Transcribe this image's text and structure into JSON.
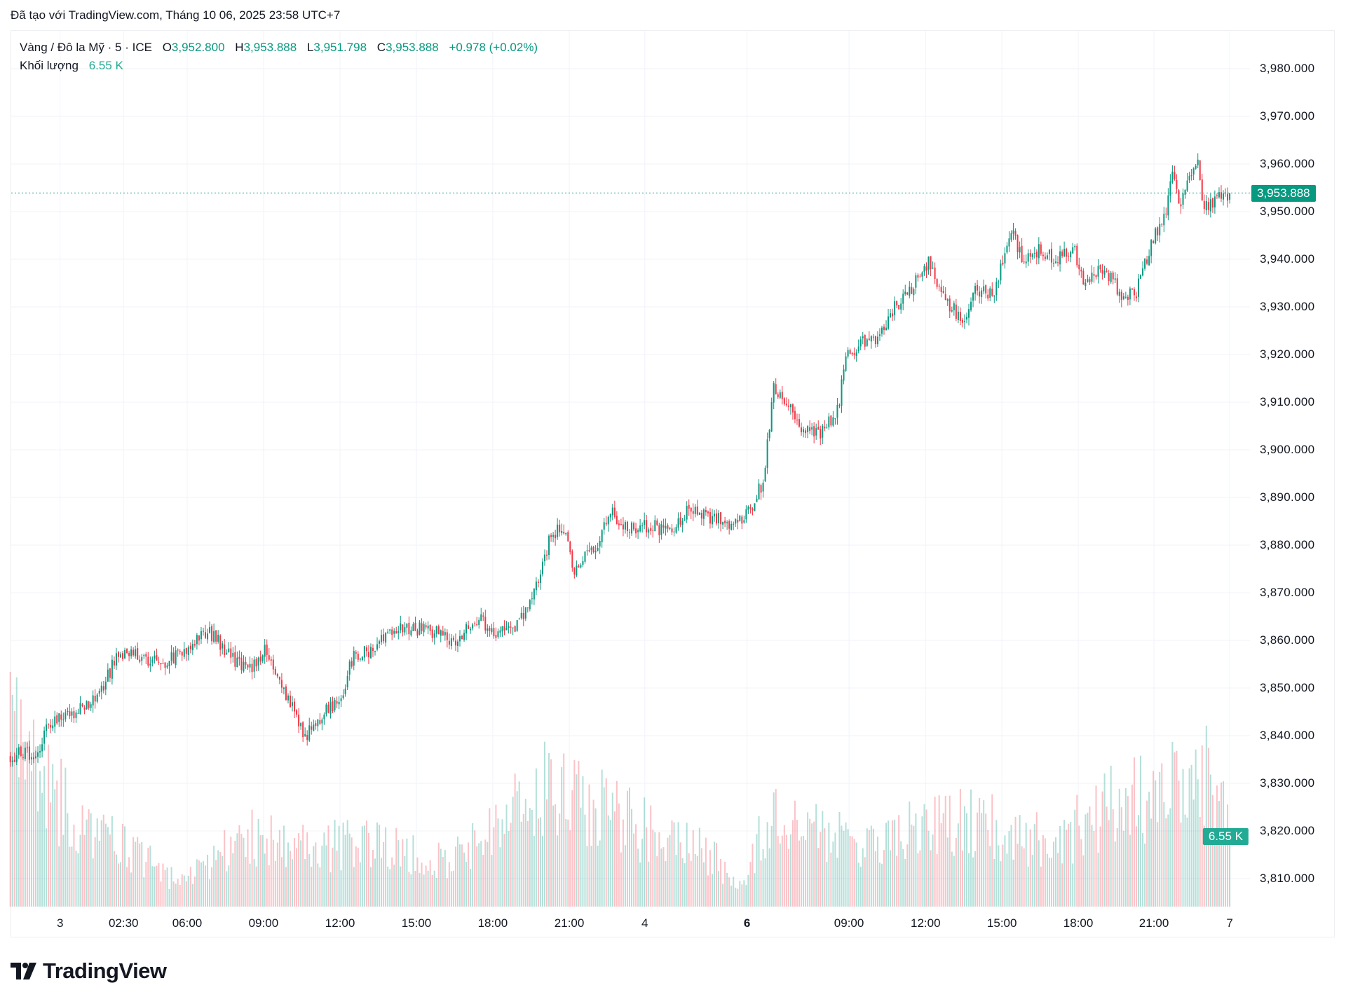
{
  "credit": "Đã tạo với TradingView.com, Tháng 10 06, 2025 23:58 UTC+7",
  "legend": {
    "symbol": "Vàng / Đô la Mỹ · 5 · ICE",
    "o_label": "O",
    "o": "3,952.800",
    "h_label": "H",
    "h": "3,953.888",
    "l_label": "L",
    "l": "3,951.798",
    "c_label": "C",
    "c": "3,953.888",
    "change": "+0.978 (+0.02%)",
    "volume_label": "Khối lượng",
    "volume": "6.55 K"
  },
  "logo_text": "TradingView",
  "colors": {
    "up": "#089981",
    "down": "#F23645",
    "grid": "#f0f3fa",
    "volume_tag": "#22ab94"
  },
  "chart_data": {
    "type": "candlestick",
    "title": "Vàng / Đô la Mỹ · 5 · ICE",
    "bar_count": 576,
    "ylim": [
      3804,
      3985
    ],
    "y_ticks": [
      "3,810.000",
      "3,820.000",
      "3,830.000",
      "3,840.000",
      "3,850.000",
      "3,860.000",
      "3,870.000",
      "3,880.000",
      "3,890.000",
      "3,900.000",
      "3,910.000",
      "3,920.000",
      "3,930.000",
      "3,940.000",
      "3,950.000",
      "3,960.000",
      "3,970.000",
      "3,980.000"
    ],
    "y_tick_values": [
      3810,
      3820,
      3830,
      3840,
      3850,
      3860,
      3870,
      3880,
      3890,
      3900,
      3910,
      3920,
      3930,
      3940,
      3950,
      3960,
      3970,
      3980
    ],
    "x_ticks": [
      {
        "label": "3",
        "bar": 23.5
      },
      {
        "label": "02:30",
        "bar": 53.4
      },
      {
        "label": "06:00",
        "bar": 83.4
      },
      {
        "label": "09:00",
        "bar": 119.4
      },
      {
        "label": "12:00",
        "bar": 155.5
      },
      {
        "label": "15:00",
        "bar": 191.5
      },
      {
        "label": "18:00",
        "bar": 227.5
      },
      {
        "label": "21:00",
        "bar": 263.6
      },
      {
        "label": "4",
        "bar": 299.2
      },
      {
        "label": "6",
        "bar": 347.4,
        "bold": true
      },
      {
        "label": "09:00",
        "bar": 395.5
      },
      {
        "label": "12:00",
        "bar": 431.6
      },
      {
        "label": "15:00",
        "bar": 467.6
      },
      {
        "label": "18:00",
        "bar": 503.6
      },
      {
        "label": "21:00",
        "bar": 539.3
      },
      {
        "label": "7",
        "bar": 575
      }
    ],
    "close_path": [
      [
        0,
        3836
      ],
      [
        12,
        3836
      ],
      [
        19,
        3843
      ],
      [
        31,
        3845
      ],
      [
        43,
        3849
      ],
      [
        50,
        3857
      ],
      [
        60,
        3857
      ],
      [
        72,
        3855
      ],
      [
        83,
        3858
      ],
      [
        92,
        3862
      ],
      [
        102,
        3858
      ],
      [
        112,
        3853
      ],
      [
        120,
        3858
      ],
      [
        128,
        3850
      ],
      [
        139,
        3840
      ],
      [
        149,
        3845
      ],
      [
        157,
        3848
      ],
      [
        161,
        3856
      ],
      [
        173,
        3859
      ],
      [
        186,
        3863
      ],
      [
        198,
        3862
      ],
      [
        210,
        3860
      ],
      [
        219,
        3865
      ],
      [
        228,
        3862
      ],
      [
        237,
        3862
      ],
      [
        246,
        3868
      ],
      [
        254,
        3881
      ],
      [
        260,
        3884
      ],
      [
        266,
        3875
      ],
      [
        275,
        3879
      ],
      [
        283,
        3887
      ],
      [
        291,
        3883
      ],
      [
        303,
        3884
      ],
      [
        311,
        3883
      ],
      [
        319,
        3887
      ],
      [
        328,
        3886
      ],
      [
        337,
        3885
      ],
      [
        343,
        3884
      ],
      [
        349,
        3888
      ],
      [
        355,
        3893
      ],
      [
        360,
        3913
      ],
      [
        366,
        3910
      ],
      [
        374,
        3904
      ],
      [
        382,
        3903
      ],
      [
        390,
        3908
      ],
      [
        394,
        3919
      ],
      [
        400,
        3922
      ],
      [
        409,
        3923
      ],
      [
        417,
        3930
      ],
      [
        425,
        3934
      ],
      [
        433,
        3939
      ],
      [
        441,
        3931
      ],
      [
        450,
        3927
      ],
      [
        455,
        3934
      ],
      [
        464,
        3933
      ],
      [
        472,
        3946
      ],
      [
        478,
        3939
      ],
      [
        485,
        3942
      ],
      [
        493,
        3940
      ],
      [
        501,
        3943
      ],
      [
        506,
        3936
      ],
      [
        515,
        3938
      ],
      [
        525,
        3932
      ],
      [
        531,
        3933
      ],
      [
        539,
        3945
      ],
      [
        544,
        3949
      ],
      [
        548,
        3957
      ],
      [
        552,
        3952
      ],
      [
        560,
        3961
      ],
      [
        562,
        3951
      ],
      [
        566,
        3952
      ],
      [
        575,
        3953.888
      ]
    ],
    "volume_path_k": [
      [
        0,
        16
      ],
      [
        30,
        8
      ],
      [
        60,
        5
      ],
      [
        80,
        2
      ],
      [
        110,
        6.4
      ],
      [
        140,
        5.6
      ],
      [
        170,
        5.6
      ],
      [
        210,
        4.4
      ],
      [
        230,
        7
      ],
      [
        255,
        12
      ],
      [
        270,
        9.6
      ],
      [
        300,
        7
      ],
      [
        330,
        4.8
      ],
      [
        345,
        2.4
      ],
      [
        360,
        9.6
      ],
      [
        380,
        7
      ],
      [
        400,
        5.6
      ],
      [
        430,
        7.2
      ],
      [
        460,
        8
      ],
      [
        490,
        5.6
      ],
      [
        520,
        9.6
      ],
      [
        545,
        10.4
      ],
      [
        565,
        12.8
      ],
      [
        575,
        6.55
      ]
    ],
    "last_price": "3,953.888",
    "last_price_value": 3953.888,
    "last_volume": "6.55 K",
    "last_volume_value": 6.55,
    "grid": true
  }
}
